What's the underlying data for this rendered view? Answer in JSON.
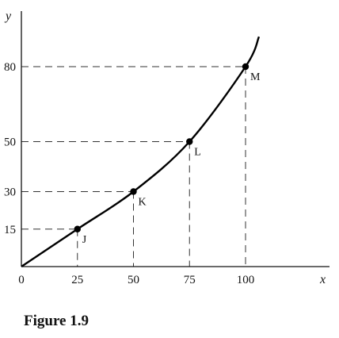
{
  "caption": "Figure 1.9",
  "chart_data": {
    "type": "line",
    "xlabel": "x",
    "ylabel": "y",
    "xlim": [
      0,
      120
    ],
    "ylim": [
      0,
      105
    ],
    "x_ticks": [
      {
        "value": 0,
        "label": "0"
      },
      {
        "value": 25,
        "label": "25"
      },
      {
        "value": 50,
        "label": "50"
      },
      {
        "value": 75,
        "label": "75"
      },
      {
        "value": 100,
        "label": "100"
      }
    ],
    "y_ticks": [
      {
        "value": 15,
        "label": "15"
      },
      {
        "value": 30,
        "label": "30"
      },
      {
        "value": 50,
        "label": "50"
      },
      {
        "value": 80,
        "label": "80"
      }
    ],
    "points": [
      {
        "label": "J",
        "x": 25,
        "y": 15
      },
      {
        "label": "K",
        "x": 50,
        "y": 30
      },
      {
        "label": "L",
        "x": 75,
        "y": 50
      },
      {
        "label": "M",
        "x": 100,
        "y": 80
      }
    ],
    "curve": [
      {
        "x": 0,
        "y": 0
      },
      {
        "x": 25,
        "y": 15
      },
      {
        "x": 50,
        "y": 30
      },
      {
        "x": 75,
        "y": 50
      },
      {
        "x": 100,
        "y": 80
      },
      {
        "x": 106,
        "y": 92
      }
    ]
  }
}
